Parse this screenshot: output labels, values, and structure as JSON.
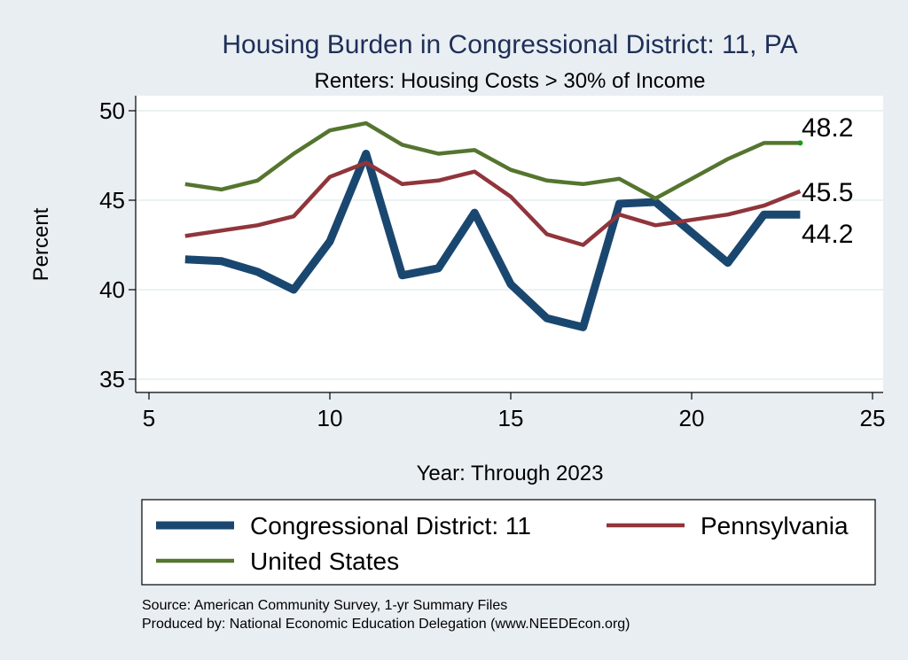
{
  "chart_data": {
    "type": "line",
    "title": "Housing Burden in Congressional District:  11, PA",
    "subtitle": "Renters: Housing Costs > 30% of Income",
    "xlabel": "Year: Through 2023",
    "ylabel": "Percent",
    "xlim": [
      5,
      25
    ],
    "ylim": [
      35,
      50
    ],
    "x_ticks": [
      5,
      10,
      15,
      20,
      25
    ],
    "y_ticks": [
      35,
      40,
      45,
      50
    ],
    "grid": true,
    "legend_position": "bottom",
    "series": [
      {
        "name": "Congressional District:  11",
        "color": "#1a476f",
        "x": [
          6,
          7,
          8,
          9,
          10,
          11,
          12,
          13,
          14,
          15,
          16,
          17,
          18,
          19,
          20,
          21,
          22,
          23
        ],
        "values": [
          41.7,
          41.6,
          41.0,
          40.0,
          42.7,
          47.6,
          40.8,
          41.2,
          44.3,
          40.3,
          38.4,
          37.9,
          44.8,
          44.9,
          43.2,
          41.5,
          44.2,
          44.2
        ],
        "end_label": "44.2"
      },
      {
        "name": "Pennsylvania",
        "color": "#90353b",
        "x": [
          6,
          7,
          8,
          9,
          10,
          11,
          12,
          13,
          14,
          15,
          16,
          17,
          18,
          19,
          20,
          21,
          22,
          23
        ],
        "values": [
          43.0,
          43.3,
          43.6,
          44.1,
          46.3,
          47.1,
          45.9,
          46.1,
          46.6,
          45.2,
          43.1,
          42.5,
          44.2,
          43.6,
          43.9,
          44.2,
          44.7,
          45.5
        ],
        "end_label": "45.5"
      },
      {
        "name": "United States",
        "color": "#55752f",
        "x": [
          6,
          7,
          8,
          9,
          10,
          11,
          12,
          13,
          14,
          15,
          16,
          17,
          18,
          19,
          20,
          21,
          22,
          23
        ],
        "values": [
          45.9,
          45.6,
          46.1,
          47.6,
          48.9,
          49.3,
          48.1,
          47.6,
          47.8,
          46.7,
          46.1,
          45.9,
          46.2,
          45.1,
          46.2,
          47.3,
          48.2,
          48.2
        ],
        "end_label": "48.2"
      }
    ],
    "legend": [
      {
        "label": "Congressional District:  11",
        "series": 0
      },
      {
        "label": "Pennsylvania",
        "series": 1
      },
      {
        "label": "United States",
        "series": 2
      }
    ]
  },
  "source_note": "Source: American Community Survey, 1-yr Summary Files",
  "producer_note": "Produced by: National Economic Education Delegation (www.NEEDEcon.org)"
}
